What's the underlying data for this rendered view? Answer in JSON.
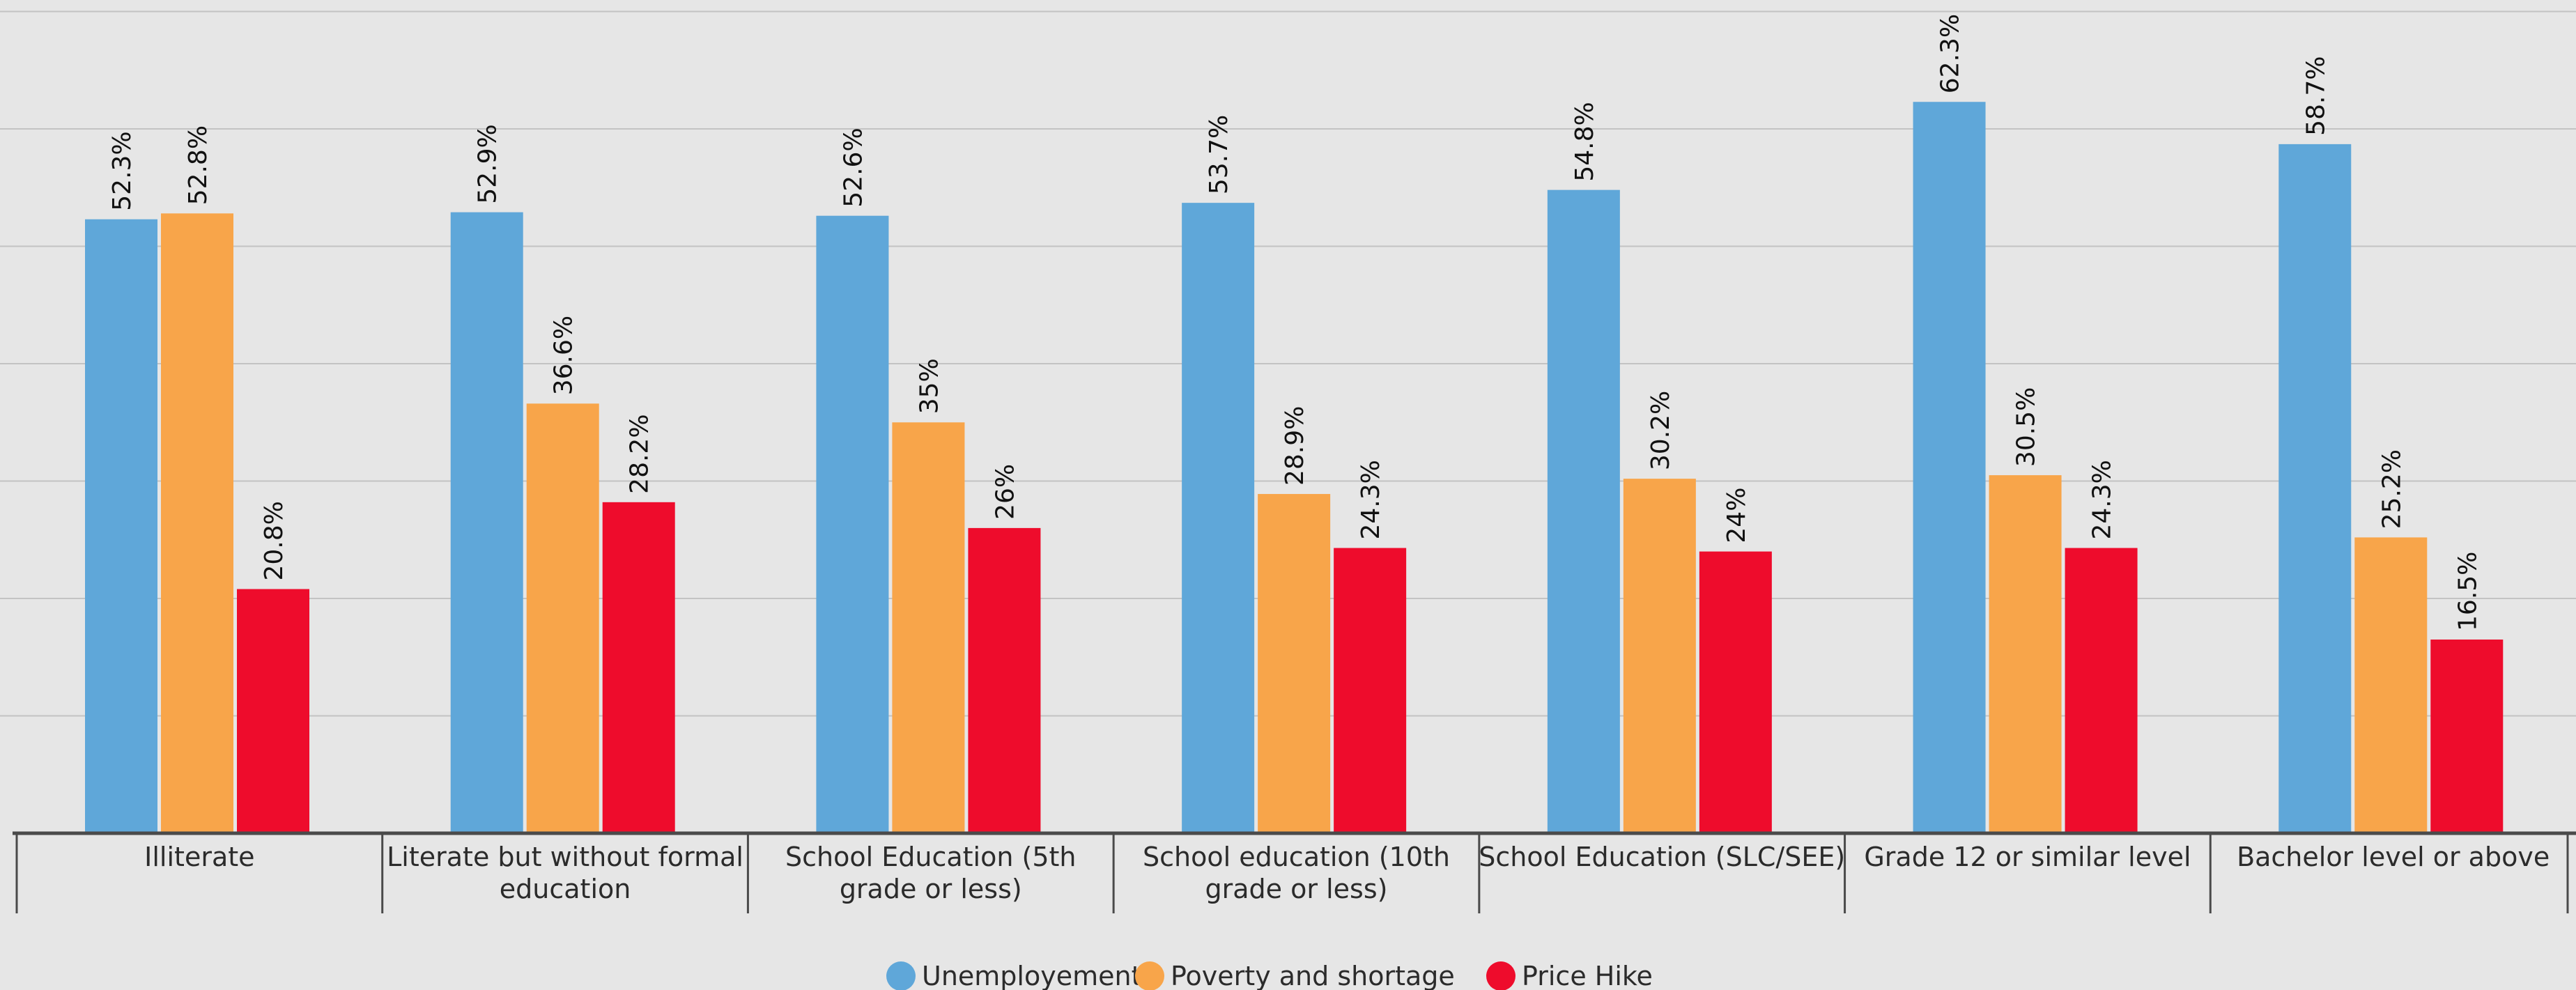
{
  "chart_data": {
    "type": "bar",
    "categories": [
      [
        "Illiterate"
      ],
      [
        "Literate but without formal",
        "education"
      ],
      [
        "School Education (5th",
        "grade or less)"
      ],
      [
        "School education (10th",
        "grade or less)"
      ],
      [
        "School Education (SLC/SEE)"
      ],
      [
        "Grade 12 or similar level"
      ],
      [
        "Bachelor level or above"
      ]
    ],
    "series": [
      {
        "name": "Unemployement",
        "color": "#5fa7d9",
        "values": [
          52.3,
          52.9,
          52.6,
          53.7,
          54.8,
          62.3,
          58.7
        ],
        "labels": [
          "52.3%",
          "52.9%",
          "52.6%",
          "53.7%",
          "54.8%",
          "62.3%",
          "58.7%"
        ]
      },
      {
        "name": "Poverty and shortage",
        "color": "#f8a54a",
        "values": [
          52.8,
          36.6,
          35,
          28.9,
          30.2,
          30.5,
          25.2
        ],
        "labels": [
          "52.8%",
          "36.6%",
          "35%",
          "28.9%",
          "30.2%",
          "30.5%",
          "25.2%"
        ]
      },
      {
        "name": "Price Hike",
        "color": "#ee0c2c",
        "values": [
          20.8,
          28.2,
          26,
          24.3,
          24,
          24.3,
          16.5
        ],
        "labels": [
          "20.8%",
          "28.2%",
          "26%",
          "24.3%",
          "24%",
          "24.3%",
          "16.5%"
        ]
      }
    ],
    "ylim": [
      0,
      70
    ],
    "grid": true,
    "legend_position": "bottom-center",
    "background": "#e6e6e6",
    "gridline_color": "#c3c3c3",
    "axis_color": "#4a4a4a"
  }
}
